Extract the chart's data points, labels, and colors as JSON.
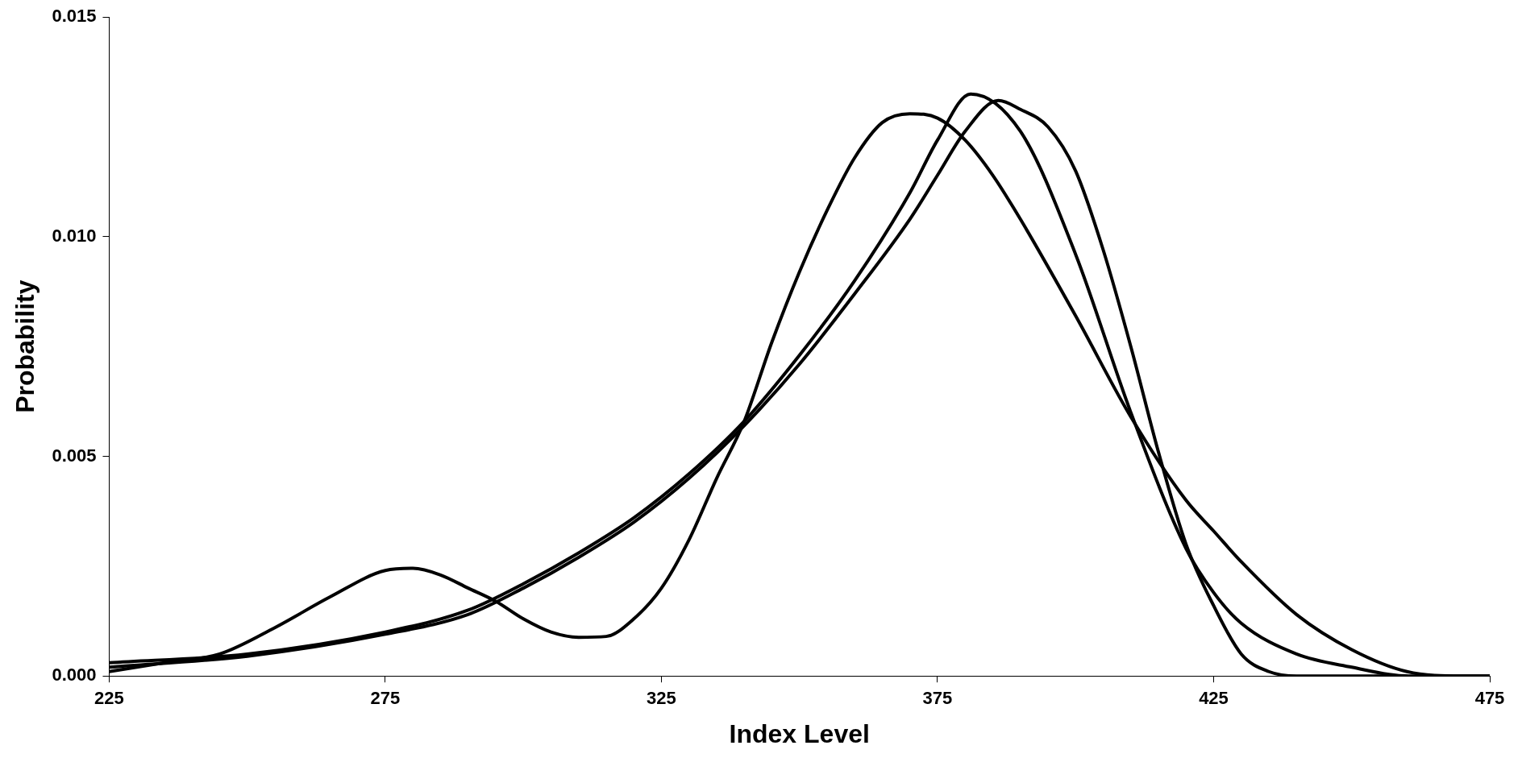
{
  "chart_data": {
    "type": "line",
    "xlabel": "Index Level",
    "ylabel": "Probability",
    "xlim": [
      225,
      475
    ],
    "xticks": [
      225,
      275,
      325,
      375,
      425,
      475
    ],
    "ylim": [
      0,
      0.015
    ],
    "yticks": [
      {
        "value": 0,
        "label": "0.000"
      },
      {
        "value": 0.005,
        "label": "0.005"
      },
      {
        "value": 0.01,
        "label": "0.010"
      },
      {
        "value": 0.015,
        "label": "0.015"
      }
    ],
    "grid": false,
    "legend": false,
    "marker": "none",
    "line_style": "solid",
    "series": [
      {
        "color": "#000000",
        "x": [
          225,
          235,
          245,
          255,
          265,
          275,
          280,
          285,
          290,
          295,
          300,
          305,
          310,
          315,
          320,
          325,
          330,
          335,
          340,
          345,
          350,
          355,
          360,
          365,
          370,
          375,
          380,
          385,
          390,
          400,
          410,
          420,
          425,
          430,
          440,
          450,
          460,
          470,
          475
        ],
        "values": [
          0.0001,
          0.0003,
          0.0005,
          0.0011,
          0.0018,
          0.0024,
          0.00245,
          0.0023,
          0.002,
          0.0017,
          0.0013,
          0.001,
          0.00088,
          0.0009,
          0.0013,
          0.002,
          0.0031,
          0.0045,
          0.0058,
          0.0076,
          0.0092,
          0.0106,
          0.0118,
          0.0126,
          0.0128,
          0.0127,
          0.0122,
          0.0114,
          0.0104,
          0.0082,
          0.0059,
          0.004,
          0.0033,
          0.0026,
          0.0014,
          0.0006,
          0.0001,
          0,
          0
        ]
      },
      {
        "color": "#000000",
        "x": [
          225,
          250,
          275,
          290,
          300,
          310,
          320,
          330,
          340,
          350,
          360,
          370,
          375,
          381,
          390,
          400,
          410,
          420,
          425,
          430,
          440,
          450,
          460,
          475
        ],
        "values": [
          0.0003,
          0.0005,
          0.001,
          0.0015,
          0.0021,
          0.0028,
          0.0036,
          0.0046,
          0.0058,
          0.0073,
          0.009,
          0.011,
          0.0122,
          0.01325,
          0.0124,
          0.0096,
          0.006,
          0.0029,
          0.0019,
          0.0012,
          0.0005,
          0.0002,
          0,
          0
        ]
      },
      {
        "color": "#000000",
        "x": [
          225,
          250,
          275,
          290,
          300,
          310,
          320,
          330,
          340,
          350,
          360,
          370,
          375,
          380,
          386,
          390,
          395,
          400,
          405,
          410,
          415,
          420,
          425,
          430,
          435,
          440,
          460
        ],
        "values": [
          0.0002,
          0.00045,
          0.00095,
          0.0014,
          0.002,
          0.0027,
          0.0035,
          0.0045,
          0.0057,
          0.0071,
          0.0087,
          0.0104,
          0.0114,
          0.0124,
          0.0131,
          0.0129,
          0.0125,
          0.0115,
          0.0097,
          0.0075,
          0.0051,
          0.003,
          0.0016,
          0.0005,
          0.0001,
          0,
          0
        ]
      }
    ]
  }
}
